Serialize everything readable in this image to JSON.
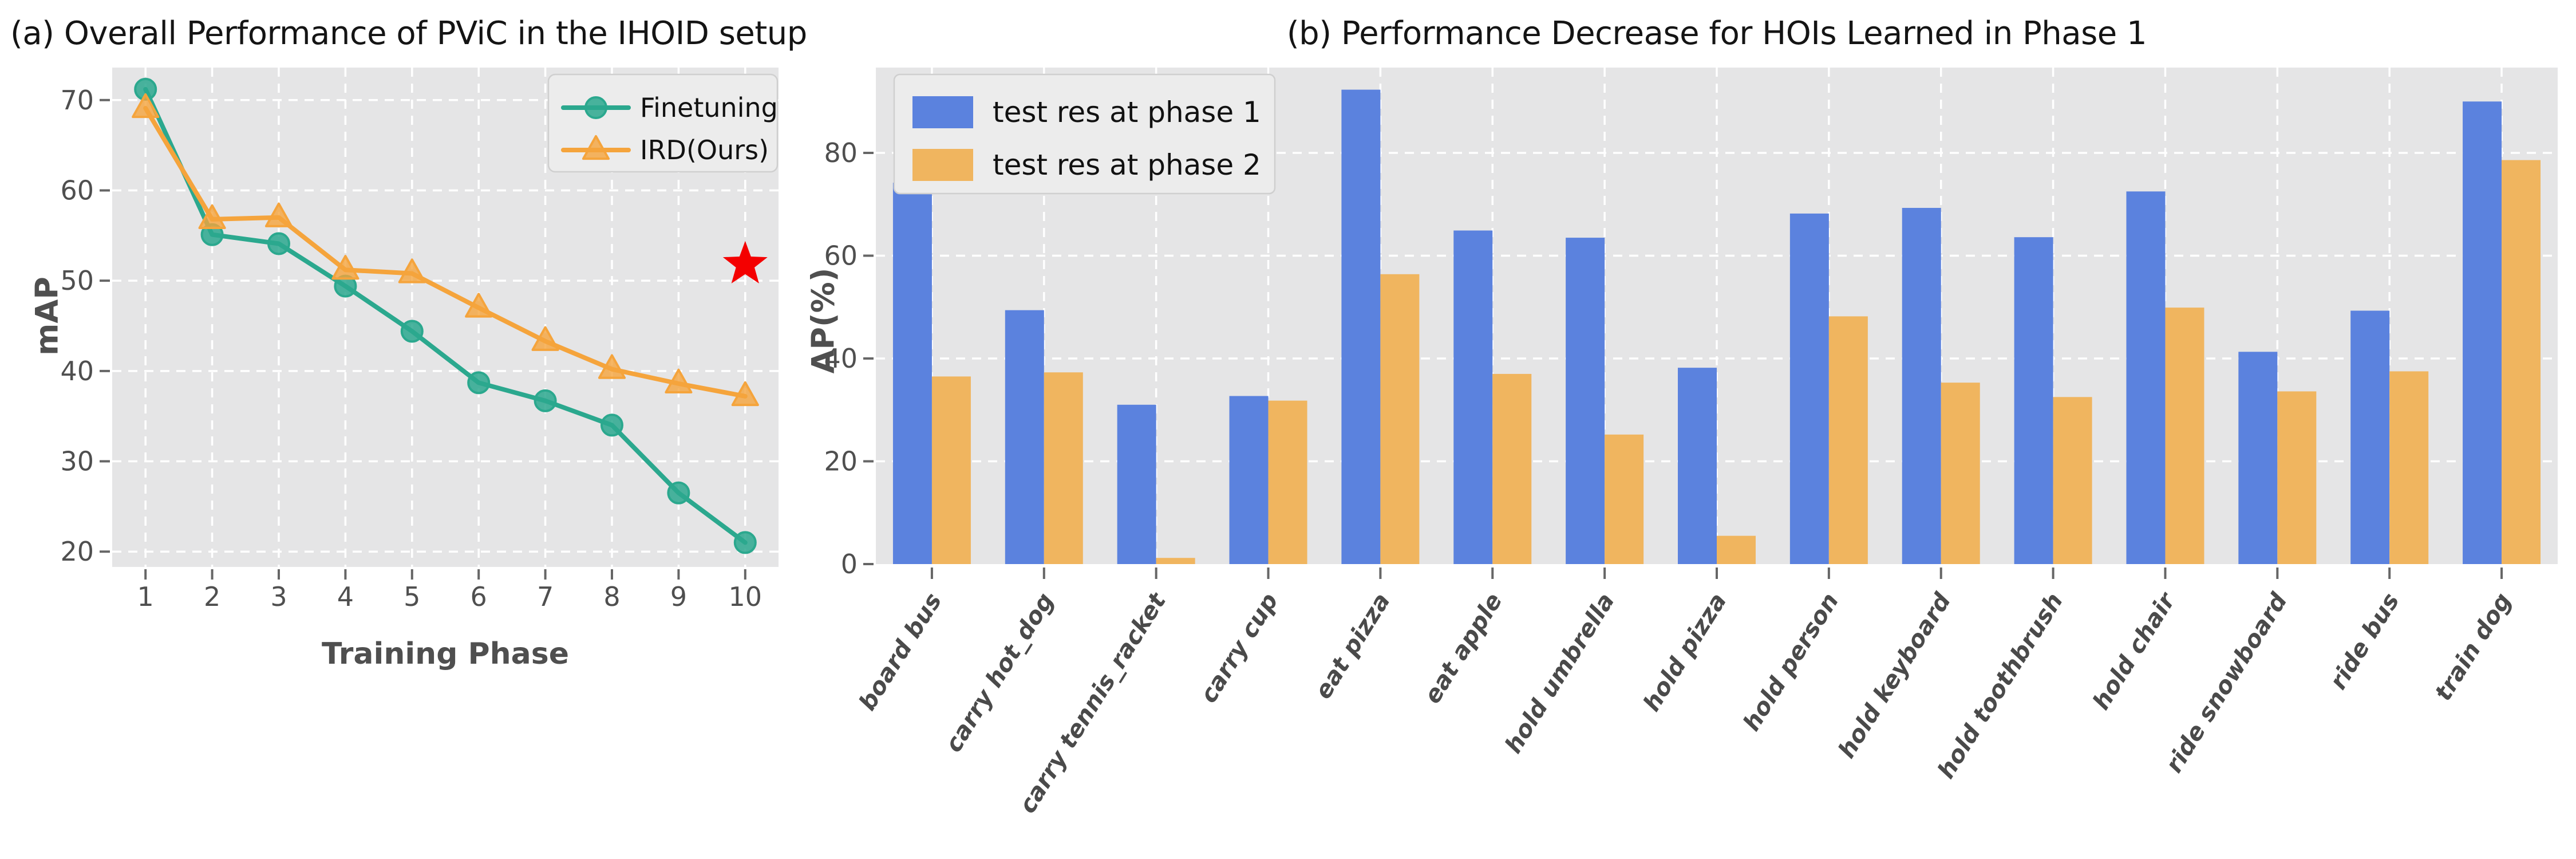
{
  "figure": {
    "background": "#ffffff",
    "plot_background": "#e5e5e6",
    "grid_color": "#ffffff",
    "tick_text_color": "#4f4f4f",
    "legend_background": "#ececec",
    "legend_border": "#cfcfcf"
  },
  "chart_data": [
    {
      "id": "a",
      "type": "line",
      "title": "(a) Overall Performance of PViC in the IHOID setup",
      "xlabel": "Training Phase",
      "ylabel": "mAP",
      "x": [
        1,
        2,
        3,
        4,
        5,
        6,
        7,
        8,
        9,
        10
      ],
      "xtick_labels": [
        "1",
        "2",
        "3",
        "4",
        "5",
        "6",
        "7",
        "8",
        "9",
        "10"
      ],
      "yticks": [
        20,
        30,
        40,
        50,
        60,
        70
      ],
      "ylim": [
        18.3,
        73.6
      ],
      "grid": true,
      "legend_position": "upper right",
      "series": [
        {
          "name": "Finetuning",
          "color": "#2ba88e",
          "marker": "circle",
          "values": [
            71.2,
            55.1,
            54.1,
            49.4,
            44.4,
            38.7,
            36.7,
            34.0,
            26.5,
            21.0
          ]
        },
        {
          "name": "IRD(Ours)",
          "color": "#f5a43c",
          "marker": "triangle",
          "values": [
            69.1,
            56.8,
            57.0,
            51.2,
            50.8,
            47.0,
            43.3,
            40.2,
            38.6,
            37.2
          ]
        }
      ],
      "annotations": [
        {
          "type": "star",
          "x": 10,
          "y": 51.8,
          "color": "#f40000"
        }
      ]
    },
    {
      "id": "b",
      "type": "bar",
      "title": "(b) Performance Decrease for HOIs Learned in Phase 1",
      "ylabel": "AP(%)",
      "categories": [
        "board bus",
        "carry hot_dog",
        "carry tennis_racket",
        "carry cup",
        "eat pizza",
        "eat apple",
        "hold umbrella",
        "hold pizza",
        "hold person",
        "hold keyboard",
        "hold toothbrush",
        "hold chair",
        "ride snowboard",
        "ride bus",
        "train dog"
      ],
      "yticks": [
        0,
        20,
        40,
        60,
        80
      ],
      "ylim": [
        0,
        96.6
      ],
      "grid": true,
      "legend_position": "upper left",
      "series": [
        {
          "name": "test res at phase 1",
          "color": "#5b82de",
          "values": [
            74.2,
            49.4,
            31.0,
            32.7,
            92.3,
            64.9,
            63.5,
            38.2,
            68.2,
            69.3,
            63.6,
            72.5,
            41.3,
            49.3,
            90.0
          ]
        },
        {
          "name": "test res at phase 2",
          "color": "#f0b55f",
          "values": [
            36.5,
            37.3,
            1.2,
            31.8,
            56.4,
            37.0,
            25.2,
            5.5,
            48.2,
            35.3,
            32.5,
            49.9,
            33.6,
            37.5,
            78.6
          ]
        }
      ]
    }
  ]
}
